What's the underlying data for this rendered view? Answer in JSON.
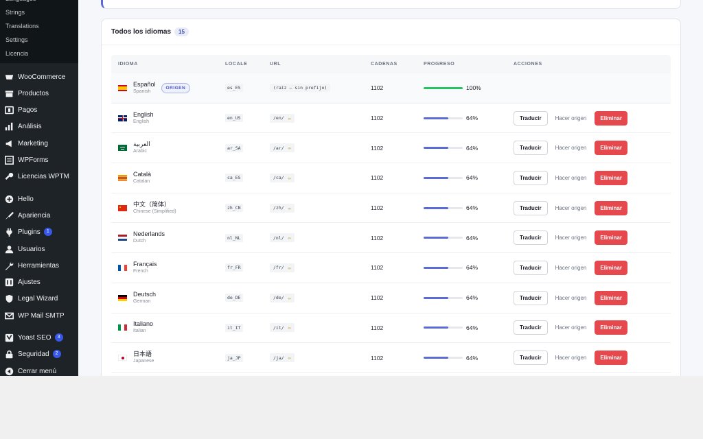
{
  "sidebar": {
    "submenu": [
      "Languages",
      "Strings",
      "Translations",
      "Settings",
      "Licencia"
    ],
    "items": [
      {
        "label": "WooCommerce",
        "icon": "woocommerce-icon"
      },
      {
        "label": "Productos",
        "icon": "products-icon"
      },
      {
        "label": "Pagos",
        "icon": "payments-icon"
      },
      {
        "label": "Análisis",
        "icon": "analytics-icon"
      },
      {
        "label": "Marketing",
        "icon": "megaphone-icon"
      },
      {
        "label": "WPForms",
        "icon": "forms-icon"
      },
      {
        "label": "Licencias WPTM",
        "icon": "key-icon"
      },
      {
        "label": "Hello",
        "icon": "plus-circle-icon"
      },
      {
        "label": "Apariencia",
        "icon": "paintbrush-icon"
      },
      {
        "label": "Plugins",
        "icon": "plugin-icon",
        "badge": "1"
      },
      {
        "label": "Usuarios",
        "icon": "user-icon"
      },
      {
        "label": "Herramientas",
        "icon": "wrench-icon"
      },
      {
        "label": "Ajustes",
        "icon": "settings-icon"
      },
      {
        "label": "Legal Wizard",
        "icon": "shield-icon"
      },
      {
        "label": "WP Mail SMTP",
        "icon": "mail-icon"
      },
      {
        "label": "Yoast SEO",
        "icon": "yoast-icon",
        "badge": "3"
      },
      {
        "label": "Seguridad",
        "icon": "lock-icon",
        "badge": "2"
      },
      {
        "label": "Cerrar menú",
        "icon": "collapse-icon"
      }
    ]
  },
  "card": {
    "title": "Todos los idiomas",
    "count": "15"
  },
  "table": {
    "headers": [
      "IDIOMA",
      "LOCALE",
      "URL",
      "CADENAS",
      "PROGRESO",
      "ACCIONES"
    ],
    "origin_badge": "ORIGEN",
    "actions": {
      "translate": "Traducir",
      "make_origin": "Hacer origen",
      "delete": "Eliminar"
    },
    "rows": [
      {
        "name": "Español",
        "english": "Spanish",
        "locale": "es_ES",
        "url": "(raíz — sin prefijo)",
        "strings": "1102",
        "progress": 100,
        "progress_label": "100%",
        "origin": true,
        "flag": "es"
      },
      {
        "name": "English",
        "english": "English",
        "locale": "en_US",
        "url": "/en/",
        "strings": "1102",
        "progress": 64,
        "progress_label": "64%",
        "origin": false,
        "flag": "gb"
      },
      {
        "name": "العربية",
        "english": "Arabic",
        "locale": "ar_SA",
        "url": "/ar/",
        "strings": "1102",
        "progress": 64,
        "progress_label": "64%",
        "origin": false,
        "flag": "sa"
      },
      {
        "name": "Català",
        "english": "Catalan",
        "locale": "ca_ES",
        "url": "/ca/",
        "strings": "1102",
        "progress": 64,
        "progress_label": "64%",
        "origin": false,
        "flag": "cat"
      },
      {
        "name": "中文（简体）",
        "english": "Chinese (Simplified)",
        "locale": "zh_CN",
        "url": "/zh/",
        "strings": "1102",
        "progress": 64,
        "progress_label": "64%",
        "origin": false,
        "flag": "cn"
      },
      {
        "name": "Nederlands",
        "english": "Dutch",
        "locale": "nl_NL",
        "url": "/nl/",
        "strings": "1102",
        "progress": 64,
        "progress_label": "64%",
        "origin": false,
        "flag": "nl"
      },
      {
        "name": "Français",
        "english": "French",
        "locale": "fr_FR",
        "url": "/fr/",
        "strings": "1102",
        "progress": 64,
        "progress_label": "64%",
        "origin": false,
        "flag": "fr"
      },
      {
        "name": "Deutsch",
        "english": "German",
        "locale": "de_DE",
        "url": "/de/",
        "strings": "1102",
        "progress": 64,
        "progress_label": "64%",
        "origin": false,
        "flag": "de"
      },
      {
        "name": "Italiano",
        "english": "Italian",
        "locale": "it_IT",
        "url": "/it/",
        "strings": "1102",
        "progress": 64,
        "progress_label": "64%",
        "origin": false,
        "flag": "it"
      },
      {
        "name": "日本語",
        "english": "Japanese",
        "locale": "ja_JP",
        "url": "/ja/",
        "strings": "1102",
        "progress": 64,
        "progress_label": "64%",
        "origin": false,
        "flag": "jp"
      }
    ]
  },
  "colors": {
    "accent": "#5b6bd5",
    "progress_full": "#22c55e",
    "progress_partial": "#5b6bd5",
    "delete": "#e5484d"
  }
}
